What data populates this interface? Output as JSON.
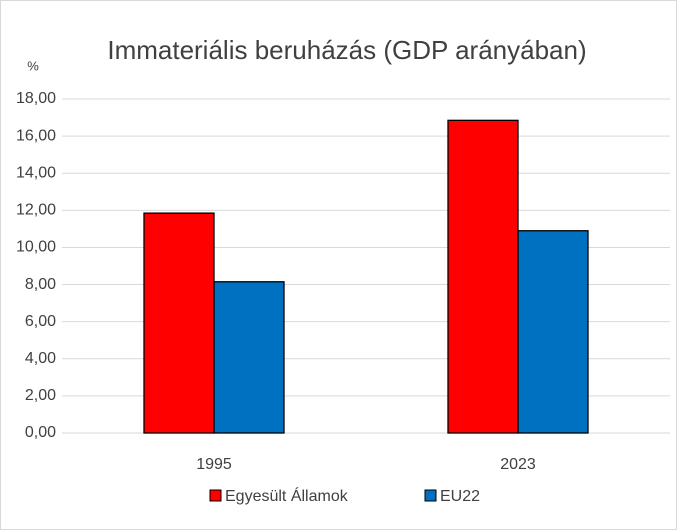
{
  "chart_data": {
    "type": "bar",
    "title": "Immateriális beruházás (GDP arányában)",
    "y_label": "%",
    "categories": [
      "1995",
      "2023"
    ],
    "series": [
      {
        "name": "Egyesült Államok",
        "color": "#ff0000",
        "values": [
          11.85,
          16.85
        ]
      },
      {
        "name": "EU22",
        "color": "#0070c0",
        "values": [
          8.15,
          10.9
        ]
      }
    ],
    "ylim": [
      0,
      18
    ],
    "yticks": [
      {
        "value": 0,
        "label": "0,00"
      },
      {
        "value": 2,
        "label": "2,00"
      },
      {
        "value": 4,
        "label": "4,00"
      },
      {
        "value": 6,
        "label": "6,00"
      },
      {
        "value": 8,
        "label": "8,00"
      },
      {
        "value": 10,
        "label": "10,00"
      },
      {
        "value": 12,
        "label": "12,00"
      },
      {
        "value": 14,
        "label": "14,00"
      },
      {
        "value": 16,
        "label": "16,00"
      },
      {
        "value": 18,
        "label": "18,00"
      }
    ],
    "grid": true,
    "legend": "bottom"
  }
}
